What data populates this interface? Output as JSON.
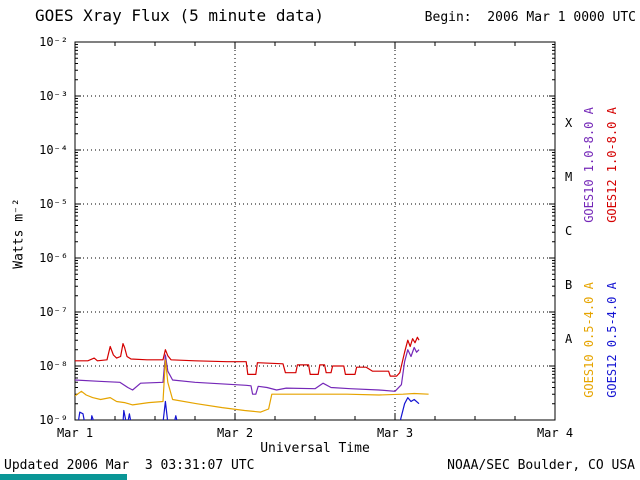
{
  "title": "GOES Xray Flux (5 minute data)",
  "begin_label": "Begin:  2006 Mar 1 0000 UTC",
  "footer": {
    "updated": "Updated 2006 Mar  3 03:31:07 UTC",
    "credit": "NOAA/SEC Boulder, CO USA",
    "bar_color": "#0a9696"
  },
  "chart_data": {
    "type": "line",
    "title": "GOES Xray Flux (5 minute data)",
    "xlabel": "Universal Time",
    "ylabel": "Watts m⁻²",
    "x_ticks": [
      "Mar 1",
      "Mar 2",
      "Mar 3",
      "Mar 4"
    ],
    "x_range_days": [
      0,
      3
    ],
    "y_scale": "log",
    "ylim": [
      1e-09,
      0.01
    ],
    "grid": "dotted",
    "y_tick_exponents": [
      -2,
      -3,
      -4,
      -5,
      -6,
      -7,
      -8,
      -9
    ],
    "y_tick_labels": [
      "10⁻²",
      "10⁻³",
      "10⁻⁴",
      "10⁻⁵",
      "10⁻⁶",
      "10⁻⁷",
      "10⁻⁸",
      "10⁻⁹"
    ],
    "flare_classes": [
      {
        "label": "X",
        "exp_mid": -3.5
      },
      {
        "label": "M",
        "exp_mid": -4.5
      },
      {
        "label": "C",
        "exp_mid": -5.5
      },
      {
        "label": "B",
        "exp_mid": -6.5
      },
      {
        "label": "A",
        "exp_mid": -7.5
      }
    ],
    "series": [
      {
        "name": "GOES10 1.0-8.0 A",
        "key": "goes10-long",
        "color": "#7528b8",
        "points": [
          [
            0.0,
            5.5e-09
          ],
          [
            0.15,
            5.2e-09
          ],
          [
            0.28,
            5e-09
          ],
          [
            0.33,
            4e-09
          ],
          [
            0.36,
            3.6e-09
          ],
          [
            0.41,
            4.8e-09
          ],
          [
            0.55,
            5e-09
          ],
          [
            0.565,
            1.6e-08
          ],
          [
            0.58,
            8e-09
          ],
          [
            0.61,
            5.5e-09
          ],
          [
            0.75,
            5e-09
          ],
          [
            0.95,
            4.6e-09
          ],
          [
            1.07,
            4.4e-09
          ],
          [
            1.1,
            4.3e-09
          ],
          [
            1.11,
            3e-09
          ],
          [
            1.13,
            3e-09
          ],
          [
            1.145,
            4.2e-09
          ],
          [
            1.2,
            4e-09
          ],
          [
            1.26,
            3.6e-09
          ],
          [
            1.32,
            3.9e-09
          ],
          [
            1.5,
            3.8e-09
          ],
          [
            1.55,
            4.8e-09
          ],
          [
            1.6,
            4e-09
          ],
          [
            1.72,
            3.8e-09
          ],
          [
            1.9,
            3.6e-09
          ],
          [
            2.0,
            3.4e-09
          ],
          [
            2.04,
            4.5e-09
          ],
          [
            2.06,
            1.2e-08
          ],
          [
            2.08,
            2e-08
          ],
          [
            2.1,
            1.5e-08
          ],
          [
            2.12,
            2.2e-08
          ],
          [
            2.135,
            1.8e-08
          ],
          [
            2.15,
            2e-08
          ]
        ]
      },
      {
        "name": "GOES12 1.0-8.0 A",
        "key": "goes12-long",
        "color": "#d40000",
        "points": [
          [
            0.0,
            1.25e-08
          ],
          [
            0.08,
            1.25e-08
          ],
          [
            0.12,
            1.4e-08
          ],
          [
            0.14,
            1.25e-08
          ],
          [
            0.2,
            1.3e-08
          ],
          [
            0.22,
            2.3e-08
          ],
          [
            0.24,
            1.6e-08
          ],
          [
            0.26,
            1.4e-08
          ],
          [
            0.285,
            1.5e-08
          ],
          [
            0.3,
            2.6e-08
          ],
          [
            0.31,
            2.2e-08
          ],
          [
            0.325,
            1.5e-08
          ],
          [
            0.35,
            1.35e-08
          ],
          [
            0.45,
            1.3e-08
          ],
          [
            0.55,
            1.3e-08
          ],
          [
            0.565,
            2e-08
          ],
          [
            0.58,
            1.55e-08
          ],
          [
            0.6,
            1.3e-08
          ],
          [
            0.75,
            1.25e-08
          ],
          [
            0.95,
            1.2e-08
          ],
          [
            1.07,
            1.2e-08
          ],
          [
            1.08,
            7e-09
          ],
          [
            1.13,
            7e-09
          ],
          [
            1.14,
            1.15e-08
          ],
          [
            1.3,
            1.1e-08
          ],
          [
            1.315,
            7.5e-09
          ],
          [
            1.38,
            7.5e-09
          ],
          [
            1.39,
            1.05e-08
          ],
          [
            1.46,
            1.05e-08
          ],
          [
            1.47,
            7e-09
          ],
          [
            1.52,
            7e-09
          ],
          [
            1.53,
            1.05e-08
          ],
          [
            1.56,
            1.05e-08
          ],
          [
            1.57,
            7.5e-09
          ],
          [
            1.6,
            7.5e-09
          ],
          [
            1.61,
            1e-08
          ],
          [
            1.68,
            1e-08
          ],
          [
            1.69,
            7e-09
          ],
          [
            1.75,
            7e-09
          ],
          [
            1.76,
            9.5e-09
          ],
          [
            1.82,
            9.5e-09
          ],
          [
            1.86,
            8e-09
          ],
          [
            1.96,
            8e-09
          ],
          [
            1.97,
            6.5e-09
          ],
          [
            2.01,
            6.5e-09
          ],
          [
            2.03,
            7.5e-09
          ],
          [
            2.06,
            1.8e-08
          ],
          [
            2.08,
            3e-08
          ],
          [
            2.095,
            2.3e-08
          ],
          [
            2.11,
            3.2e-08
          ],
          [
            2.125,
            2.7e-08
          ],
          [
            2.14,
            3.4e-08
          ],
          [
            2.15,
            3e-08
          ]
        ]
      },
      {
        "name": "GOES10 0.5-4.0 A",
        "key": "goes10-short",
        "color": "#e6a400",
        "points": [
          [
            0.0,
            2.8e-09
          ],
          [
            0.04,
            3.4e-09
          ],
          [
            0.07,
            2.9e-09
          ],
          [
            0.11,
            2.6e-09
          ],
          [
            0.16,
            2.4e-09
          ],
          [
            0.22,
            2.6e-09
          ],
          [
            0.26,
            2.2e-09
          ],
          [
            0.31,
            2.1e-09
          ],
          [
            0.36,
            1.9e-09
          ],
          [
            0.46,
            2.1e-09
          ],
          [
            0.55,
            2.2e-09
          ],
          [
            0.565,
            1.3e-08
          ],
          [
            0.58,
            5e-09
          ],
          [
            0.61,
            2.4e-09
          ],
          [
            0.76,
            2e-09
          ],
          [
            0.92,
            1.7e-09
          ],
          [
            1.06,
            1.5e-09
          ],
          [
            1.16,
            1.4e-09
          ],
          [
            1.21,
            1.6e-09
          ],
          [
            1.23,
            3e-09
          ],
          [
            1.45,
            3e-09
          ],
          [
            1.7,
            3e-09
          ],
          [
            1.9,
            2.9e-09
          ],
          [
            2.05,
            3e-09
          ],
          [
            2.12,
            3.1e-09
          ],
          [
            2.21,
            3e-09
          ]
        ]
      },
      {
        "name": "GOES12 0.5-4.0 A",
        "key": "goes12-short",
        "color": "#1414d2",
        "points": [
          [
            0.02,
            9e-10
          ],
          [
            0.03,
            1.4e-09
          ],
          [
            0.05,
            1.3e-09
          ],
          [
            0.06,
            9e-10
          ],
          [
            0.1,
            9e-10
          ],
          [
            0.105,
            1.2e-09
          ],
          [
            0.12,
            9e-10
          ],
          [
            0.3,
            9e-10
          ],
          [
            0.305,
            1.5e-09
          ],
          [
            0.32,
            9e-10
          ],
          [
            0.33,
            9e-10
          ],
          [
            0.34,
            1.3e-09
          ],
          [
            0.35,
            9e-10
          ],
          [
            0.55,
            9e-10
          ],
          [
            0.565,
            2.2e-09
          ],
          [
            0.58,
            9e-10
          ],
          [
            0.62,
            9e-10
          ],
          [
            0.63,
            1.2e-09
          ],
          [
            0.64,
            9e-10
          ],
          [
            2.03,
            9e-10
          ],
          [
            2.06,
            2e-09
          ],
          [
            2.08,
            2.6e-09
          ],
          [
            2.1,
            2.2e-09
          ],
          [
            2.12,
            2.4e-09
          ],
          [
            2.15,
            2e-09
          ]
        ]
      }
    ]
  }
}
